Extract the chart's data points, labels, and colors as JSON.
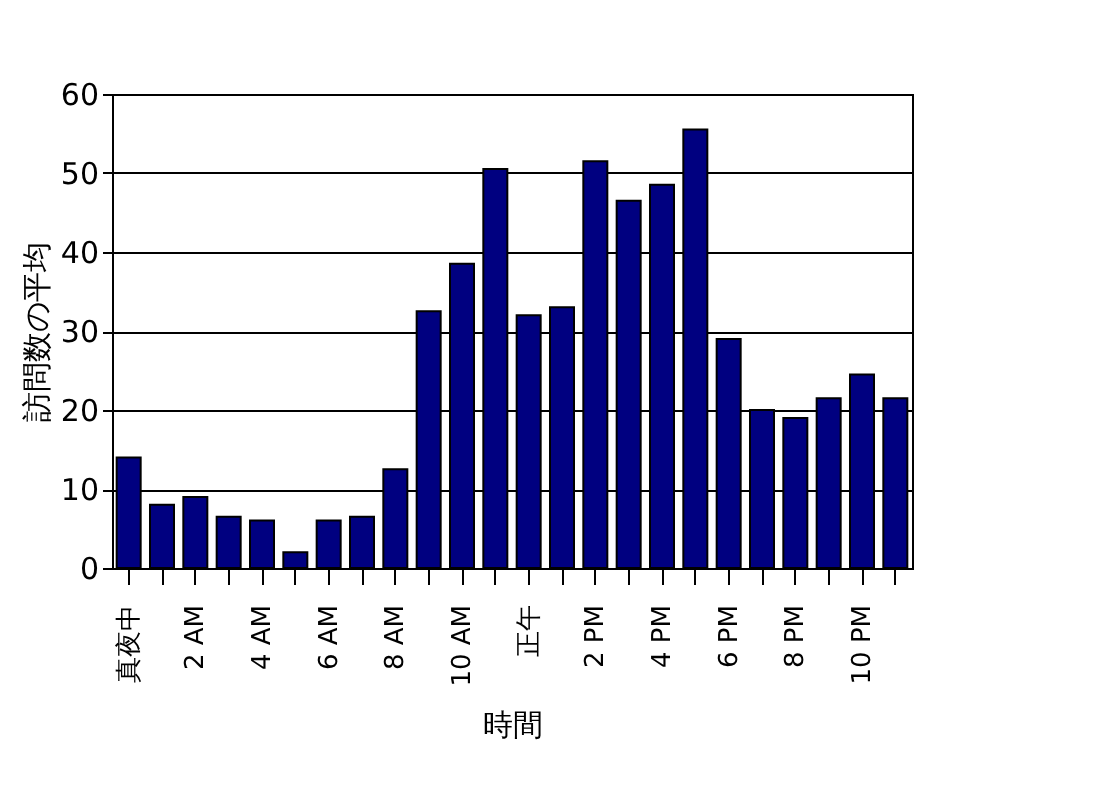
{
  "chart_data": {
    "type": "bar",
    "xlabel": "時間",
    "ylabel": "訪問数の平均",
    "categories": [
      "真夜中",
      null,
      "2 AM",
      null,
      "4 AM",
      null,
      "6 AM",
      null,
      "8 AM",
      null,
      "10 AM",
      null,
      "正午",
      null,
      "2 PM",
      null,
      "4 PM",
      null,
      "6 PM",
      null,
      "8 PM",
      null,
      "10 PM",
      null
    ],
    "values": [
      14,
      8,
      9,
      6.5,
      6,
      2,
      6,
      6.5,
      12.5,
      32.5,
      38.5,
      50.5,
      32,
      33,
      51.5,
      46.5,
      48.5,
      55.5,
      29,
      20,
      19,
      21.5,
      24.5,
      21.5
    ],
    "color": "#000080",
    "ylim": [
      0,
      60
    ],
    "yticks": [
      0,
      10,
      20,
      30,
      40,
      50,
      60
    ],
    "grid": "y"
  }
}
